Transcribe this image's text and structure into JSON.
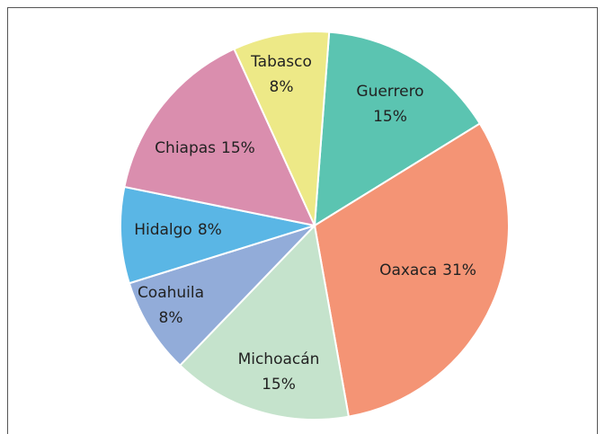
{
  "chart_data": {
    "type": "pie",
    "categories": [
      "Guerrero",
      "Oaxaca",
      "Michoacán",
      "Coahuila",
      "Hidalgo",
      "Chiapas",
      "Tabasco"
    ],
    "values": [
      15,
      31,
      15,
      8,
      8,
      15,
      8
    ],
    "value_labels": [
      "15%",
      "31%",
      "15%",
      "8%",
      "8%",
      "15%",
      "8%"
    ],
    "colors": [
      "#5bc4b1",
      "#f49475",
      "#c5e3cc",
      "#92acd9",
      "#5ab6e5",
      "#da8eae",
      "#ede987"
    ]
  }
}
